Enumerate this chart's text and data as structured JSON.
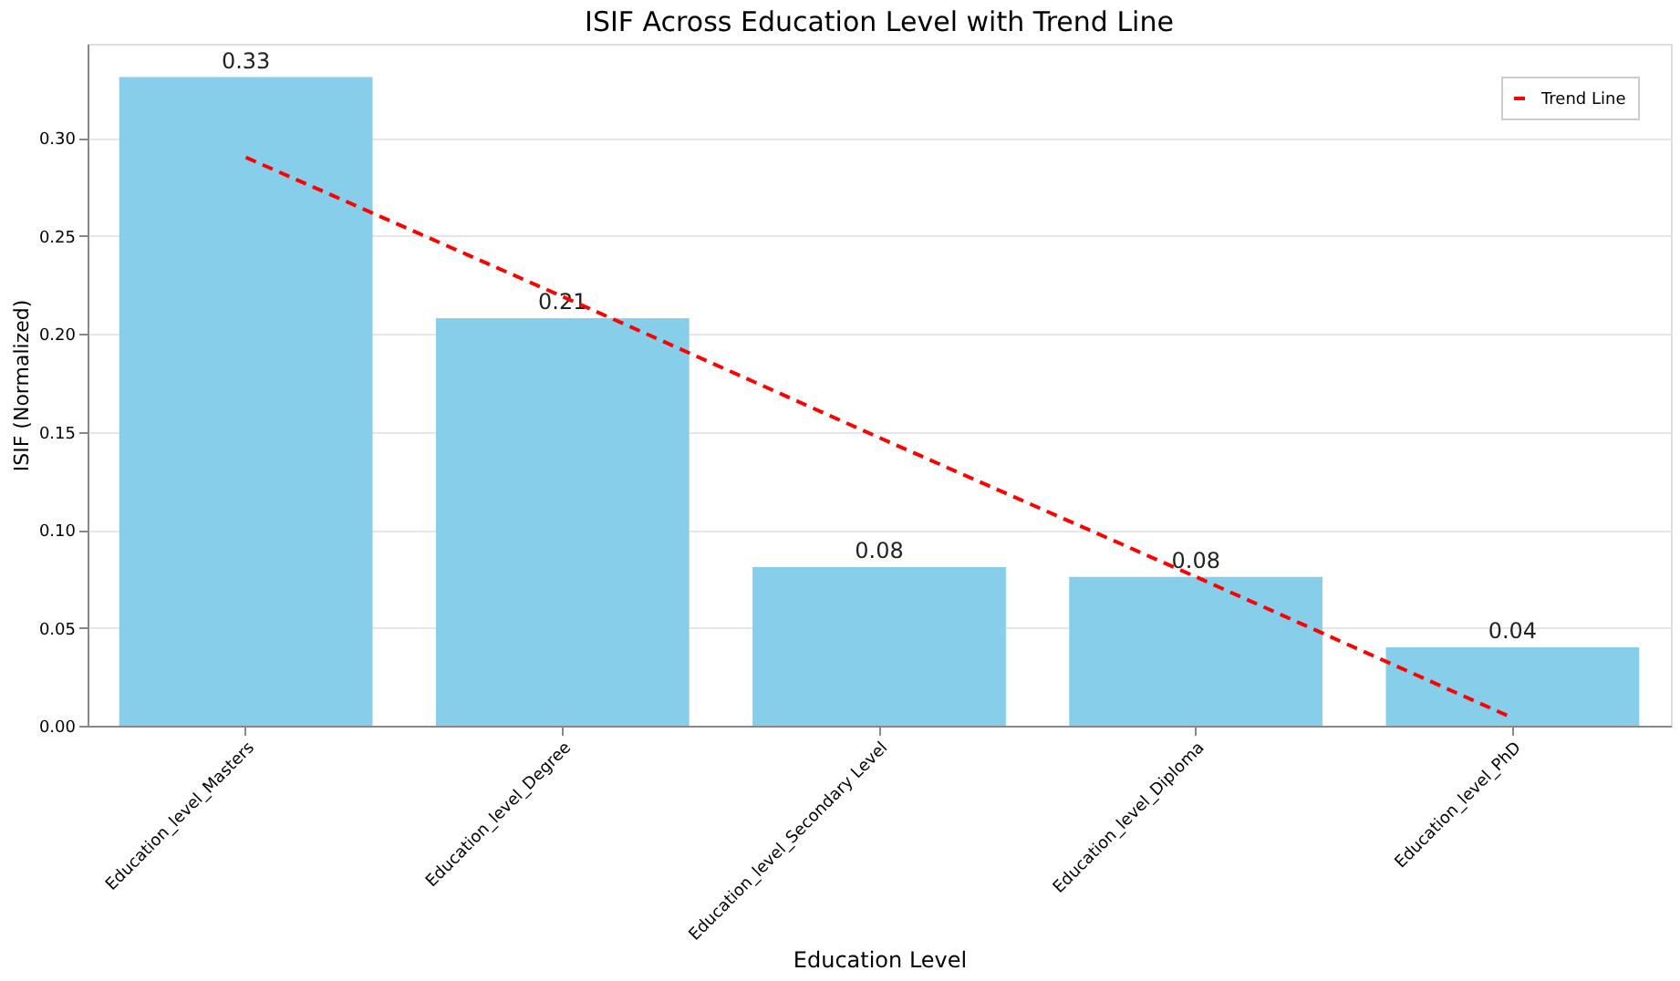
{
  "chart_data": {
    "type": "bar",
    "title": "ISIF Across Education Level with Trend Line",
    "xlabel": "Education Level",
    "ylabel": "ISIF (Normalized)",
    "categories": [
      "Education_level_Masters",
      "Education_level_Degree",
      "Education_level_Secondary Level",
      "Education_level_Diploma",
      "Education_level_PhD"
    ],
    "series": [
      {
        "color": "#87ceeb",
        "values": [
          0.331,
          0.208,
          0.081,
          0.076,
          0.04
        ],
        "value_labels": [
          "0.33",
          "0.21",
          "0.08",
          "0.08",
          "0.04"
        ]
      },
      {
        "type": "line",
        "name": "Trend Line",
        "color": "#ff0000",
        "line_style": "dashed",
        "values": [
          0.29,
          0.219,
          0.147,
          0.076,
          0.004
        ]
      }
    ],
    "ylim": [
      0,
      0.348
    ],
    "yticks": [
      {
        "value": 0,
        "label": "0.00"
      },
      0.05,
      {
        "value": 0.1,
        "label": "0.10"
      },
      0.15,
      {
        "value": 0.2,
        "label": "0.20"
      },
      0.25,
      {
        "value": 0.3,
        "label": "0.30"
      }
    ],
    "grid": "y",
    "legend": "top right"
  }
}
